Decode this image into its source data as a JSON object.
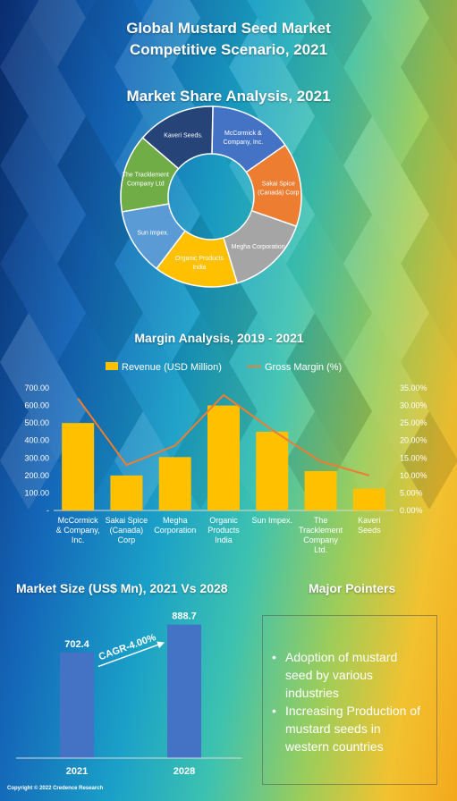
{
  "header": {
    "title_line1": "Global Mustard Seed Market",
    "title_line2": "Competitive Scenario, 2021"
  },
  "colors": {
    "bar": "#ffc000",
    "line": "#ed7d31",
    "size_bar": "#4472c4",
    "cagr_arrow": "#ffffff"
  },
  "market_share": {
    "title": "Market Share Analysis, 2021"
  },
  "margin_analysis": {
    "title": "Margin Analysis, 2019 - 2021",
    "legend_revenue": "Revenue (USD Million)",
    "legend_margin": "Gross Margin (%)",
    "left_ticks": [
      "700.00",
      "600.00",
      "500.00",
      "400.00",
      "300.00",
      "200.00",
      "100.00",
      "-"
    ],
    "right_ticks": [
      "35.00%",
      "30.00%",
      "25.00%",
      "20.00%",
      "15.00%",
      "10.00%",
      "5.00%",
      "0.00%"
    ]
  },
  "market_size": {
    "title": "Market Size (US$ Mn), 2021 Vs 2028",
    "cagr": "CAGR-4.00%"
  },
  "major_pointers": {
    "title": "Major Pointers",
    "items": [
      "Adoption of mustard seed by various industries",
      "Increasing Production of mustard seeds in western countries"
    ],
    "bullet": "•"
  },
  "footer": {
    "copyright": "Copyright © 2022 Credence Research"
  },
  "chart_data": [
    {
      "type": "pie",
      "title": "Market Share Analysis, 2021",
      "donut": true,
      "slices": [
        {
          "label": "McCormick & Company, Inc.",
          "value": 15,
          "color": "#4472c4"
        },
        {
          "label": "Sakai Spice (Canada) Corp",
          "value": 15,
          "color": "#ed7d31"
        },
        {
          "label": "Megha Corporation",
          "value": 15,
          "color": "#a5a5a5"
        },
        {
          "label": "Organic Products India",
          "value": 15,
          "color": "#ffc000"
        },
        {
          "label": "Sun Impex.",
          "value": 12,
          "color": "#5b9bd5"
        },
        {
          "label": "The Tracklement Company Ltd.",
          "value": 14,
          "color": "#70ad47"
        },
        {
          "label": "Kaveri Seeds.",
          "value": 14,
          "color": "#264478"
        }
      ]
    },
    {
      "type": "bar",
      "title": "Margin Analysis, 2019 - 2021",
      "categories": [
        "McCormick & Company, Inc.",
        "Sakai Spice (Canada) Corp",
        "Megha Corporation",
        "Organic Products India",
        "Sun Impex.",
        "The Tracklement Company Ltd.",
        "Kaveri Seeds"
      ],
      "category_lines": [
        [
          "McCormick",
          "& Company,",
          "Inc."
        ],
        [
          "Sakai Spice",
          "(Canada)",
          "Corp"
        ],
        [
          "Megha",
          "Corporation"
        ],
        [
          "Organic",
          "Products",
          "India"
        ],
        [
          "Sun Impex."
        ],
        [
          "The",
          "Tracklement",
          "Company",
          "Ltd."
        ],
        [
          "Kaveri",
          "Seeds"
        ]
      ],
      "series": [
        {
          "name": "Revenue (USD Million)",
          "type": "bar",
          "axis": "left",
          "values": [
            500,
            200,
            305,
            600,
            450,
            225,
            125
          ]
        },
        {
          "name": "Gross Margin (%)",
          "type": "line",
          "axis": "right",
          "values": [
            32,
            13,
            18.5,
            33,
            23,
            14,
            10
          ]
        }
      ],
      "ylim_left": [
        0,
        700
      ],
      "ylim_right": [
        0,
        35
      ],
      "grid": false,
      "legend": "top"
    },
    {
      "type": "bar",
      "title": "Market Size (US$ Mn), 2021 Vs 2028",
      "categories": [
        "2021",
        "2028"
      ],
      "values": [
        702.4,
        888.7
      ],
      "value_labels": [
        "702.4",
        "888.7"
      ],
      "ylim": [
        0,
        1000
      ],
      "annotation": "CAGR-4.00%"
    }
  ]
}
